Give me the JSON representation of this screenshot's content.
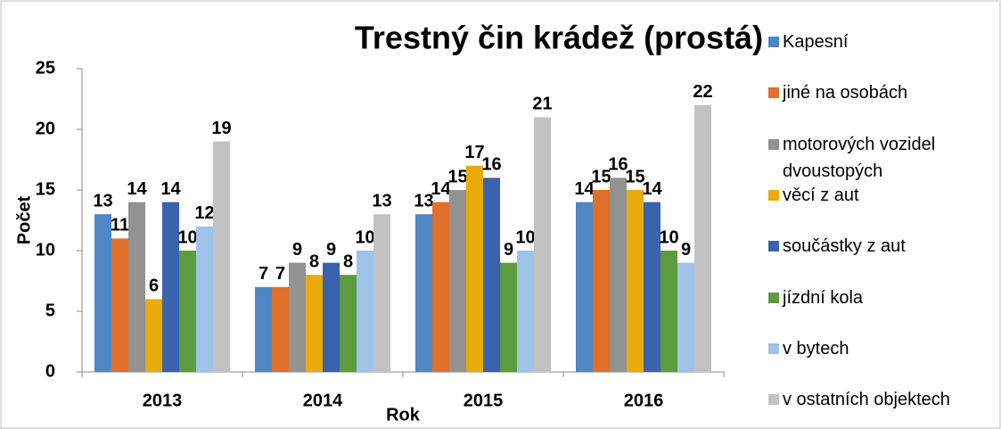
{
  "chart_data": {
    "type": "bar",
    "title": "Trestný čin krádež (prostá)",
    "x_label": "Rok",
    "y_label": "Počet",
    "categories": [
      "2013",
      "2014",
      "2015",
      "2016"
    ],
    "series": [
      {
        "name": "Kapesní",
        "color": "#4f86c6",
        "values": [
          13,
          7,
          13,
          14
        ]
      },
      {
        "name": "jiné na osobách",
        "color": "#e0702a",
        "values": [
          11,
          7,
          14,
          15
        ]
      },
      {
        "name": "motorových vozidel dvoustopých",
        "color": "#929292",
        "values": [
          14,
          9,
          15,
          16
        ]
      },
      {
        "name": "věcí z aut",
        "color": "#e8ab0a",
        "values": [
          6,
          8,
          17,
          15
        ]
      },
      {
        "name": "součástky z aut",
        "color": "#3b62ad",
        "values": [
          14,
          9,
          16,
          14
        ]
      },
      {
        "name": "jízdní kola",
        "color": "#5e9b3c",
        "values": [
          10,
          8,
          9,
          10
        ]
      },
      {
        "name": "v bytech",
        "color": "#9fc3e8",
        "values": [
          12,
          10,
          10,
          9
        ]
      },
      {
        "name": "v ostatních objektech",
        "color": "#c2c2c2",
        "values": [
          19,
          13,
          21,
          22
        ]
      }
    ],
    "ylim": [
      0,
      25
    ],
    "yticks": [
      0,
      5,
      10,
      15,
      20,
      25
    ],
    "legend": "right"
  }
}
